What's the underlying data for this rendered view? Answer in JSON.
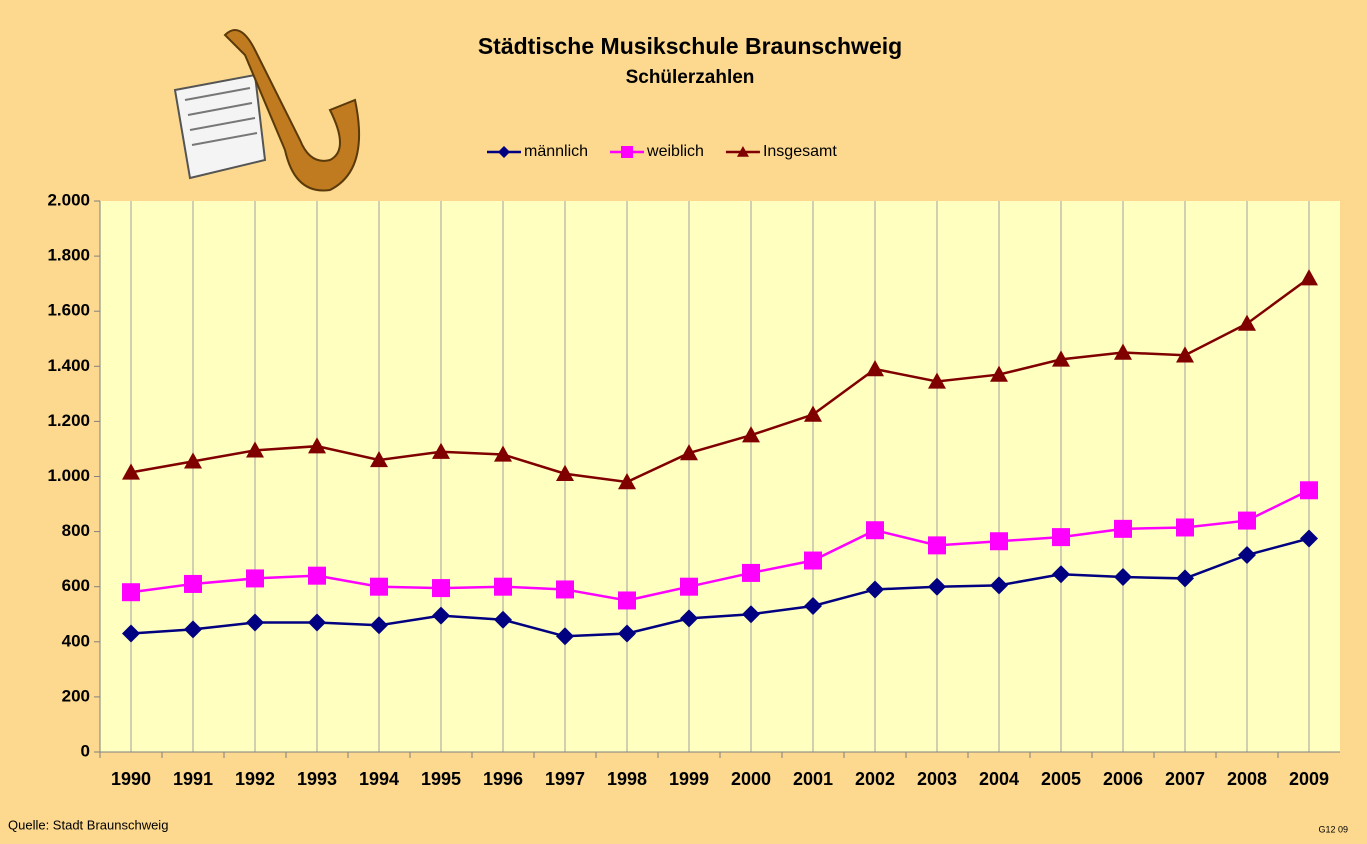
{
  "chart_data": {
    "type": "line",
    "title": "Städtische Musikschule Braunschweig",
    "subtitle": "Schülerzahlen",
    "source": "Quelle: Stadt Braunschweig",
    "code": "G12 09",
    "categories": [
      "1990",
      "1991",
      "1992",
      "1993",
      "1994",
      "1995",
      "1996",
      "1997",
      "1998",
      "1999",
      "2000",
      "2001",
      "2002",
      "2003",
      "2004",
      "2005",
      "2006",
      "2007",
      "2008",
      "2009"
    ],
    "series": [
      {
        "name": "männlich",
        "color": "#000080",
        "marker": "diamond",
        "values": [
          430,
          445,
          470,
          470,
          460,
          495,
          480,
          420,
          430,
          485,
          500,
          530,
          590,
          600,
          605,
          645,
          635,
          630,
          715,
          775
        ]
      },
      {
        "name": "weiblich",
        "color": "#ff00ff",
        "marker": "square",
        "values": [
          580,
          610,
          630,
          640,
          600,
          595,
          600,
          590,
          550,
          600,
          650,
          695,
          805,
          750,
          765,
          780,
          810,
          815,
          840,
          950
        ]
      },
      {
        "name": "Insgesamt",
        "color": "#800000",
        "marker": "triangle",
        "values": [
          1015,
          1055,
          1095,
          1110,
          1060,
          1090,
          1080,
          1010,
          980,
          1085,
          1150,
          1225,
          1390,
          1345,
          1370,
          1425,
          1450,
          1440,
          1555,
          1720
        ]
      }
    ],
    "ylim": [
      0,
      2000
    ],
    "yticks": [
      0,
      200,
      400,
      600,
      800,
      {
        "value": 1000,
        "label": "1.000"
      },
      {
        "value": 1200,
        "label": "1.200"
      },
      {
        "value": 1400,
        "label": "1.400"
      },
      {
        "value": 1600,
        "label": "1.600"
      },
      {
        "value": 1800,
        "label": "1.800"
      },
      {
        "value": 2000,
        "label": "2.000"
      }
    ],
    "legend": "top",
    "plot_background": "#ffffc0"
  }
}
